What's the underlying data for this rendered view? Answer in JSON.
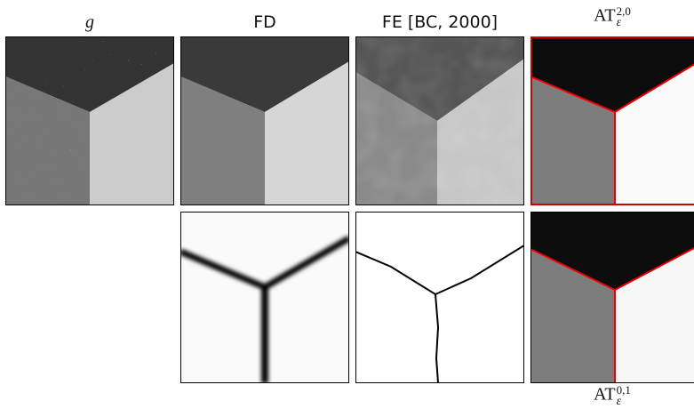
{
  "labels": {
    "g": "g",
    "fd": "FD",
    "fe": "FE [BC, 2000]",
    "at20": {
      "base": "AT",
      "sup": "2,0",
      "sub": "ε"
    },
    "at01": {
      "base": "AT",
      "sup": "0,1",
      "sub": "ε"
    }
  }
}
